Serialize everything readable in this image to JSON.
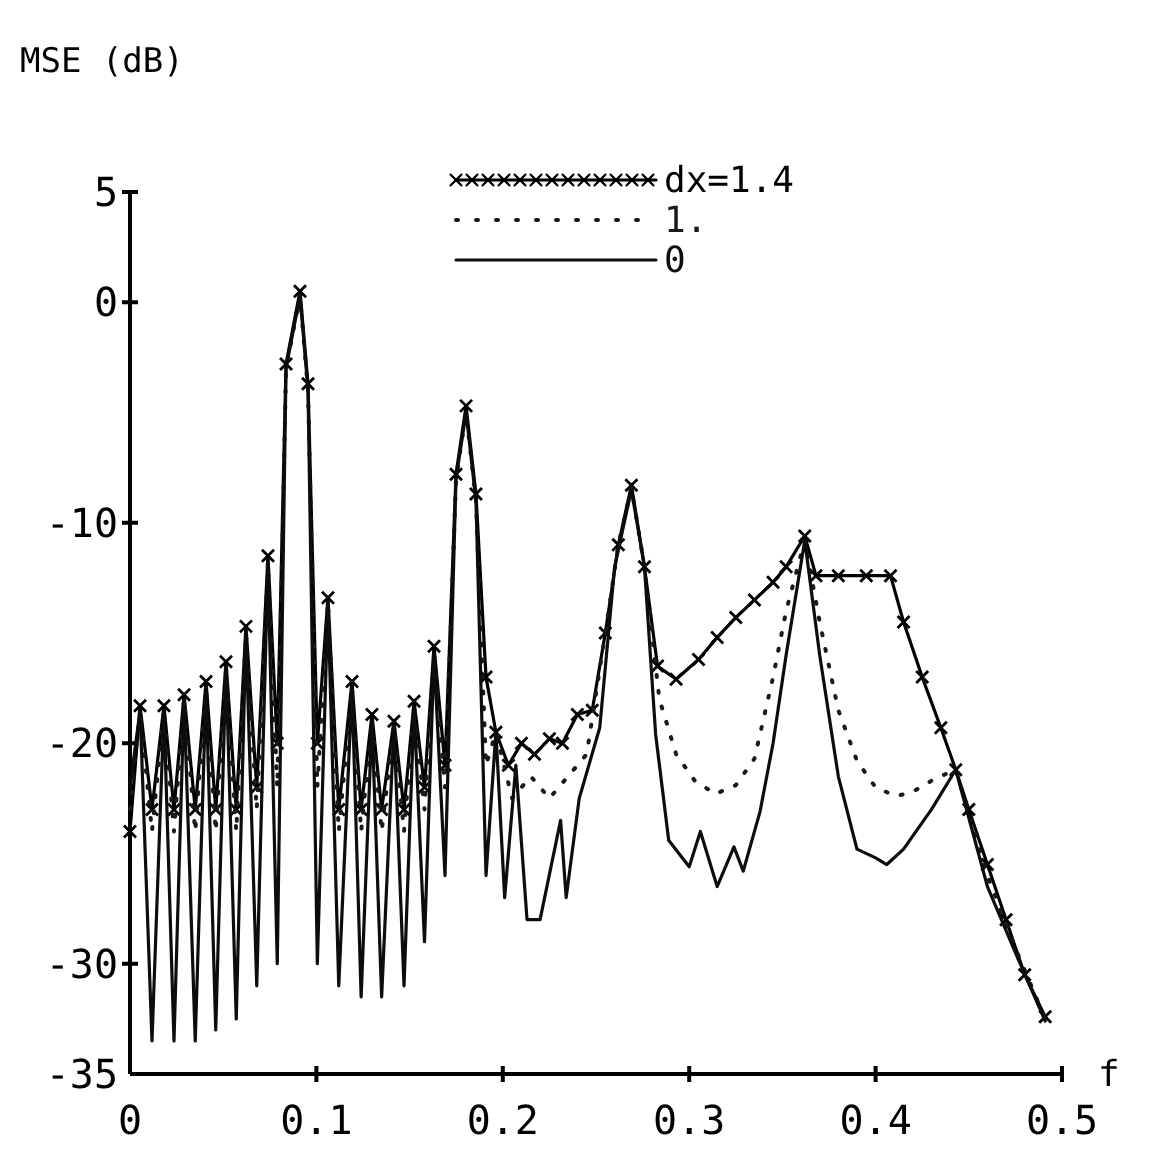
{
  "chart_data": {
    "type": "line",
    "ylabel": "MSE (dB)",
    "xlabel": "f",
    "xlim": [
      0,
      0.5
    ],
    "xticks": [
      0,
      0.1,
      0.2,
      0.3,
      0.4,
      0.5
    ],
    "ylim": [
      -35,
      5
    ],
    "yticks": [
      5,
      0,
      -10,
      -20,
      -30,
      -35
    ],
    "grid": false,
    "legend": "top",
    "series": [
      {
        "name": "dx=1.4",
        "color": "#000000",
        "marker": "cross",
        "line_style": "solid",
        "x": [
          0,
          0.0054,
          0.0118,
          0.0182,
          0.0236,
          0.029,
          0.035,
          0.0408,
          0.046,
          0.0515,
          0.057,
          0.0622,
          0.068,
          0.074,
          0.079,
          0.0837,
          0.0912,
          0.0955,
          0.1005,
          0.1062,
          0.112,
          0.1191,
          0.124,
          0.1298,
          0.135,
          0.1416,
          0.147,
          0.1524,
          0.158,
          0.1631,
          0.169,
          0.1749,
          0.1803,
          0.1856,
          0.191,
          0.1963,
          0.203,
          0.21,
          0.217,
          0.225,
          0.232,
          0.24,
          0.248,
          0.255,
          0.262,
          0.269,
          0.276,
          0.283,
          0.293,
          0.305,
          0.315,
          0.325,
          0.335,
          0.345,
          0.352,
          0.362,
          0.368,
          0.38,
          0.395,
          0.408,
          0.415,
          0.425,
          0.435,
          0.443,
          0.45,
          0.46,
          0.47,
          0.48,
          0.491
        ],
        "values": [
          -24,
          -18.3,
          -23,
          -18.3,
          -23,
          -17.8,
          -23,
          -17.2,
          -23,
          -16.3,
          -23,
          -14.7,
          -22,
          -11.5,
          -20,
          -2.8,
          0.5,
          -3.7,
          -20,
          -13.4,
          -23,
          -17.2,
          -23,
          -18.7,
          -23,
          -19,
          -23,
          -18.1,
          -22,
          -15.6,
          -21,
          -7.8,
          -4.7,
          -8.7,
          -17,
          -19.5,
          -21,
          -20,
          -20.5,
          -19.8,
          -20,
          -18.7,
          -18.5,
          -15,
          -11,
          -8.3,
          -12,
          -16.5,
          -17.1,
          -16.2,
          -15.2,
          -14.3,
          -13.5,
          -12.7,
          -12,
          -10.6,
          -12.4,
          -12.4,
          -12.4,
          -12.4,
          -14.5,
          -17,
          -19.3,
          -21.2,
          -23,
          -25.5,
          -28,
          -30.5,
          -32.4
        ]
      },
      {
        "name": "1.",
        "color": "#1a1a1a",
        "marker": "none",
        "line_style": "dotted",
        "x": [
          0,
          0.0054,
          0.0118,
          0.0182,
          0.0236,
          0.029,
          0.035,
          0.0408,
          0.046,
          0.0515,
          0.057,
          0.0622,
          0.068,
          0.074,
          0.079,
          0.0837,
          0.0912,
          0.0955,
          0.1005,
          0.1062,
          0.112,
          0.1191,
          0.124,
          0.1298,
          0.135,
          0.1416,
          0.147,
          0.1524,
          0.158,
          0.1631,
          0.169,
          0.1749,
          0.1803,
          0.1856,
          0.191,
          0.1963,
          0.205,
          0.215,
          0.225,
          0.235,
          0.245,
          0.255,
          0.262,
          0.269,
          0.276,
          0.284,
          0.293,
          0.303,
          0.314,
          0.325,
          0.335,
          0.345,
          0.352,
          0.362,
          0.37,
          0.38,
          0.39,
          0.4,
          0.411,
          0.42,
          0.432,
          0.443,
          0.46,
          0.475,
          0.491
        ],
        "values": [
          -23,
          -18.5,
          -24,
          -18.5,
          -24,
          -18,
          -24,
          -17.5,
          -24,
          -16.5,
          -24,
          -15,
          -23,
          -11.8,
          -22,
          -3,
          0.3,
          -4,
          -22,
          -13.6,
          -24,
          -17.5,
          -24,
          -19,
          -24,
          -19.2,
          -24,
          -18.4,
          -23,
          -16,
          -22,
          -8,
          -5,
          -9,
          -21,
          -19.5,
          -22.5,
          -21.5,
          -22.5,
          -21.5,
          -20.5,
          -15,
          -11,
          -8.4,
          -12,
          -18,
          -20.5,
          -21.7,
          -22.3,
          -21.9,
          -20.7,
          -17,
          -14,
          -10.8,
          -14.5,
          -18.5,
          -20.8,
          -22,
          -22.4,
          -22.2,
          -21.6,
          -21.2,
          -26,
          -29.3,
          -32.5
        ]
      },
      {
        "name": "0",
        "color": "#0d0d0d",
        "marker": "none",
        "line_style": "solid",
        "x": [
          0,
          0.0054,
          0.0118,
          0.0182,
          0.0236,
          0.029,
          0.035,
          0.0408,
          0.046,
          0.0515,
          0.057,
          0.0622,
          0.068,
          0.074,
          0.079,
          0.0837,
          0.0912,
          0.0955,
          0.1005,
          0.1062,
          0.112,
          0.1191,
          0.124,
          0.1298,
          0.135,
          0.1416,
          0.147,
          0.1524,
          0.158,
          0.1631,
          0.169,
          0.1749,
          0.1803,
          0.1856,
          0.191,
          0.1963,
          0.201,
          0.207,
          0.213,
          0.22,
          0.231,
          0.234,
          0.241,
          0.252,
          0.26,
          0.269,
          0.276,
          0.282,
          0.289,
          0.3,
          0.306,
          0.315,
          0.324,
          0.329,
          0.338,
          0.345,
          0.352,
          0.362,
          0.37,
          0.38,
          0.39,
          0.4,
          0.406,
          0.415,
          0.43,
          0.443,
          0.46,
          0.475,
          0.491
        ],
        "values": [
          -22,
          -18.5,
          -33.5,
          -18.5,
          -33.5,
          -18,
          -33.5,
          -17.5,
          -33,
          -16.5,
          -32.5,
          -15,
          -31,
          -11.8,
          -30,
          -3,
          0.3,
          -4,
          -30,
          -13.6,
          -31,
          -17.5,
          -31.5,
          -19,
          -31.5,
          -19.2,
          -31,
          -18.4,
          -29,
          -16,
          -26,
          -8,
          -5,
          -9,
          -26,
          -19.5,
          -27,
          -21,
          -28,
          -28,
          -23.5,
          -27,
          -22.5,
          -19.3,
          -12,
          -8.5,
          -12,
          -19.6,
          -24.4,
          -25.6,
          -24,
          -26.5,
          -24.7,
          -25.8,
          -23.1,
          -20,
          -16,
          -10.8,
          -16,
          -21.5,
          -24.8,
          -25.2,
          -25.5,
          -24.8,
          -23,
          -21.2,
          -26.5,
          -29.5,
          -32.6
        ]
      }
    ]
  }
}
